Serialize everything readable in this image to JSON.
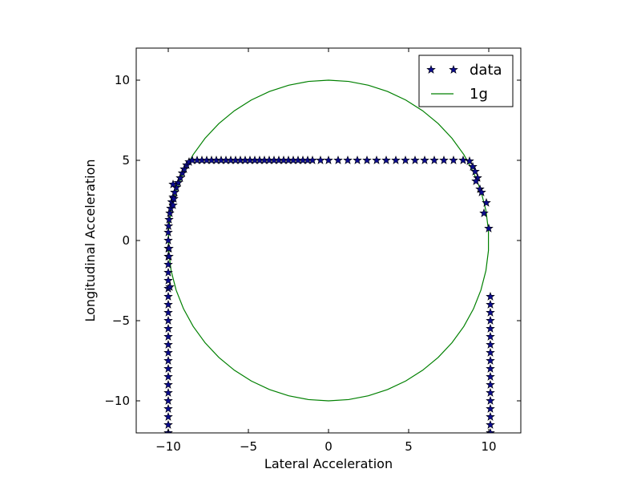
{
  "chart_data": {
    "type": "scatter",
    "xlabel": "Lateral Acceleration",
    "ylabel": "Longitudinal Acceleration",
    "xlim": [
      -12,
      12
    ],
    "ylim": [
      -12,
      12
    ],
    "xticks": [
      -10,
      -5,
      0,
      5,
      10
    ],
    "yticks": [
      -10,
      -5,
      0,
      5,
      10
    ],
    "xtick_labels": [
      "−10",
      "−5",
      "0",
      "5",
      "10"
    ],
    "ytick_labels": [
      "−10",
      "−5",
      "0",
      "5",
      "10"
    ],
    "grid": false,
    "legend_position": "top-right",
    "series": [
      {
        "name": "data",
        "style": "star-markers",
        "marker_color": "#0b0b8c",
        "marker_edge": "#000000",
        "points": [
          [
            -10.0,
            -12.0
          ],
          [
            -10.0,
            -11.5
          ],
          [
            -10.0,
            -11.0
          ],
          [
            -10.0,
            -10.5
          ],
          [
            -10.0,
            -10.0
          ],
          [
            -10.0,
            -9.5
          ],
          [
            -10.0,
            -9.0
          ],
          [
            -10.0,
            -8.5
          ],
          [
            -10.0,
            -8.0
          ],
          [
            -10.0,
            -7.5
          ],
          [
            -10.0,
            -7.0
          ],
          [
            -10.0,
            -6.5
          ],
          [
            -10.0,
            -6.0
          ],
          [
            -10.0,
            -5.5
          ],
          [
            -10.0,
            -5.0
          ],
          [
            -10.0,
            -4.5
          ],
          [
            -10.0,
            -4.0
          ],
          [
            -10.0,
            -3.5
          ],
          [
            -10.0,
            -3.0
          ],
          [
            -10.0,
            -2.5
          ],
          [
            -10.0,
            -2.0
          ],
          [
            -10.0,
            -1.5
          ],
          [
            -10.0,
            -1.0
          ],
          [
            -10.0,
            -0.5
          ],
          [
            -10.0,
            0.0
          ],
          [
            -10.0,
            0.5
          ],
          [
            -9.98,
            0.9
          ],
          [
            -9.95,
            1.3
          ],
          [
            -9.9,
            1.7
          ],
          [
            -9.85,
            2.0
          ],
          [
            -9.78,
            2.4
          ],
          [
            -9.7,
            2.7
          ],
          [
            -9.6,
            3.0
          ],
          [
            -9.5,
            3.3
          ],
          [
            -9.38,
            3.6
          ],
          [
            -9.25,
            3.9
          ],
          [
            -9.12,
            4.2
          ],
          [
            -9.0,
            4.45
          ],
          [
            -8.85,
            4.7
          ],
          [
            -8.7,
            4.9
          ],
          [
            -8.5,
            5.0
          ],
          [
            -8.2,
            5.0
          ],
          [
            -7.9,
            5.0
          ],
          [
            -7.6,
            5.0
          ],
          [
            -7.3,
            5.0
          ],
          [
            -7.0,
            5.0
          ],
          [
            -6.7,
            5.0
          ],
          [
            -6.4,
            5.0
          ],
          [
            -6.1,
            5.0
          ],
          [
            -5.8,
            5.0
          ],
          [
            -5.5,
            5.0
          ],
          [
            -5.2,
            5.0
          ],
          [
            -4.9,
            5.0
          ],
          [
            -4.6,
            5.0
          ],
          [
            -4.3,
            5.0
          ],
          [
            -4.0,
            5.0
          ],
          [
            -3.7,
            5.0
          ],
          [
            -3.4,
            5.0
          ],
          [
            -3.1,
            5.0
          ],
          [
            -2.8,
            5.0
          ],
          [
            -2.5,
            5.0
          ],
          [
            -2.2,
            5.0
          ],
          [
            -1.9,
            5.0
          ],
          [
            -1.6,
            5.0
          ],
          [
            -1.3,
            5.0
          ],
          [
            -1.0,
            5.0
          ],
          [
            -0.5,
            5.0
          ],
          [
            0.0,
            5.0
          ],
          [
            0.6,
            5.0
          ],
          [
            1.2,
            5.0
          ],
          [
            1.8,
            5.0
          ],
          [
            2.4,
            5.0
          ],
          [
            3.0,
            5.0
          ],
          [
            3.6,
            5.0
          ],
          [
            4.2,
            5.0
          ],
          [
            4.8,
            5.0
          ],
          [
            5.4,
            5.0
          ],
          [
            6.0,
            5.0
          ],
          [
            6.6,
            5.0
          ],
          [
            7.2,
            5.0
          ],
          [
            7.8,
            5.0
          ],
          [
            8.4,
            5.0
          ],
          [
            8.8,
            4.95
          ],
          [
            -9.7,
            3.5
          ],
          [
            -9.65,
            2.6
          ],
          [
            -9.7,
            2.2
          ],
          [
            -9.9,
            -2.9
          ],
          [
            -9.95,
            -0.5
          ],
          [
            -9.95,
            -1.0
          ],
          [
            9.0,
            4.6
          ],
          [
            9.15,
            4.3
          ],
          [
            9.3,
            3.9
          ],
          [
            9.2,
            3.7
          ],
          [
            9.45,
            3.2
          ],
          [
            9.55,
            3.0
          ],
          [
            9.85,
            2.35
          ],
          [
            9.7,
            1.7
          ],
          [
            10.0,
            0.75
          ],
          [
            10.1,
            -3.5
          ],
          [
            10.1,
            -4.0
          ],
          [
            10.1,
            -4.5
          ],
          [
            10.1,
            -5.0
          ],
          [
            10.1,
            -5.5
          ],
          [
            10.1,
            -6.0
          ],
          [
            10.1,
            -6.5
          ],
          [
            10.1,
            -7.0
          ],
          [
            10.1,
            -7.5
          ],
          [
            10.1,
            -8.0
          ],
          [
            10.1,
            -8.5
          ],
          [
            10.1,
            -9.0
          ],
          [
            10.1,
            -9.5
          ],
          [
            10.1,
            -10.0
          ],
          [
            10.1,
            -10.5
          ],
          [
            10.1,
            -11.0
          ],
          [
            10.1,
            -11.5
          ],
          [
            10.1,
            -12.0
          ]
        ]
      },
      {
        "name": "1g",
        "style": "line",
        "line_color": "#008000",
        "circle": {
          "center": [
            0,
            0
          ],
          "radius": 10,
          "segments": 50
        }
      }
    ]
  }
}
